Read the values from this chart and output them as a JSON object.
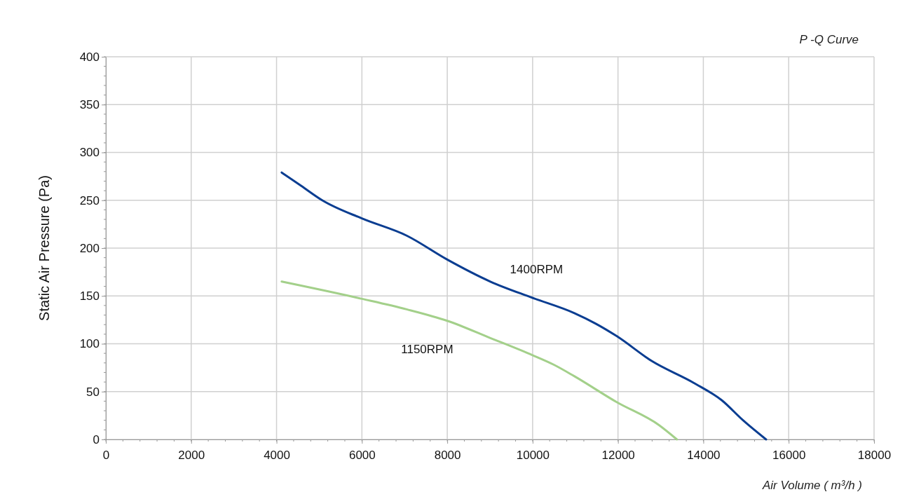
{
  "chart_data": {
    "type": "line",
    "title": "P -Q Curve",
    "xlabel": "Air Volume ( m³/h )",
    "ylabel": "Static Air Pressure  (Pa)",
    "xlim": [
      0,
      18000
    ],
    "xticks": [
      0,
      2000,
      4000,
      6000,
      8000,
      10000,
      12000,
      14000,
      16000,
      18000
    ],
    "ylim": [
      0,
      400
    ],
    "yticks": [
      0,
      50,
      100,
      150,
      200,
      250,
      300,
      350,
      400
    ],
    "grid": true,
    "marker": "none",
    "line_style": "solid",
    "series": [
      {
        "name": "1400RPM",
        "color": "#0a3d91",
        "x": [
          4120,
          4580,
          5070,
          6000,
          7050,
          8000,
          9010,
          10000,
          10980,
          11480,
          11970,
          12790,
          13780,
          14430,
          14930,
          15470
        ],
        "values": [
          279,
          265,
          250,
          231,
          213,
          188,
          165,
          148,
          132,
          121,
          108,
          82,
          59,
          41,
          20,
          0
        ]
      },
      {
        "name": "1150RPM",
        "color": "#a3d08a",
        "x": [
          4120,
          6000,
          7050,
          8000,
          9010,
          10000,
          10500,
          10980,
          11970,
          12960,
          13380
        ],
        "values": [
          165,
          147,
          136,
          124,
          106,
          88,
          78,
          66,
          39,
          15,
          0
        ]
      }
    ]
  }
}
